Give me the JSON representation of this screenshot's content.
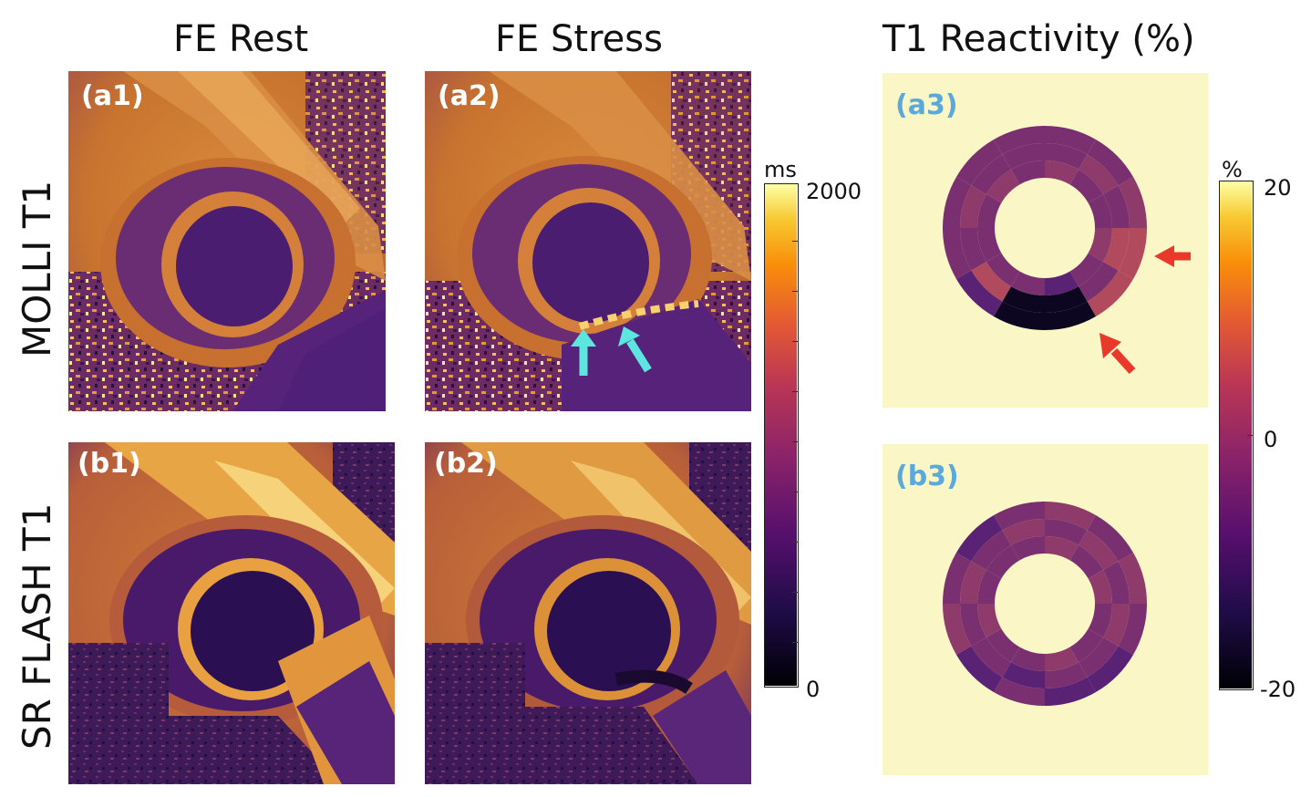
{
  "columns": {
    "rest": "FE Rest",
    "stress": "FE Stress",
    "reactivity": "T1 Reactivity (%)"
  },
  "rows": {
    "molli": "MOLLI T1",
    "flash": "SR FLASH T1"
  },
  "panels": {
    "a1": "(a1)",
    "a2": "(a2)",
    "a3": "(a3)",
    "b1": "(b1)",
    "b2": "(b2)",
    "b3": "(b3)"
  },
  "colorbar_t1": {
    "unit": "ms",
    "max_label": "2000",
    "min_label": "0",
    "max": 2000,
    "min": 0
  },
  "colorbar_reactivity": {
    "unit": "%",
    "max_label": "20",
    "mid_label": "0",
    "min_label": "-20",
    "max": 20,
    "mid": 0,
    "min": -20
  },
  "colors": {
    "inferno_dark": "#0a0616",
    "inferno_purple": "#4a1e6a",
    "inferno_magenta": "#8c3a6e",
    "inferno_orange": "#d5842f",
    "inferno_light": "#fbf8c7",
    "background_pale": "#fbf6c6",
    "label_white": "#ffffff",
    "label_blue": "#5aa9dc",
    "arrow_cyan": "#5de6e0",
    "arrow_red": "#e8392a"
  },
  "icons": {
    "stress_arrows": "cyan-arrow-icon",
    "reactivity_arrows": "red-arrow-icon"
  }
}
